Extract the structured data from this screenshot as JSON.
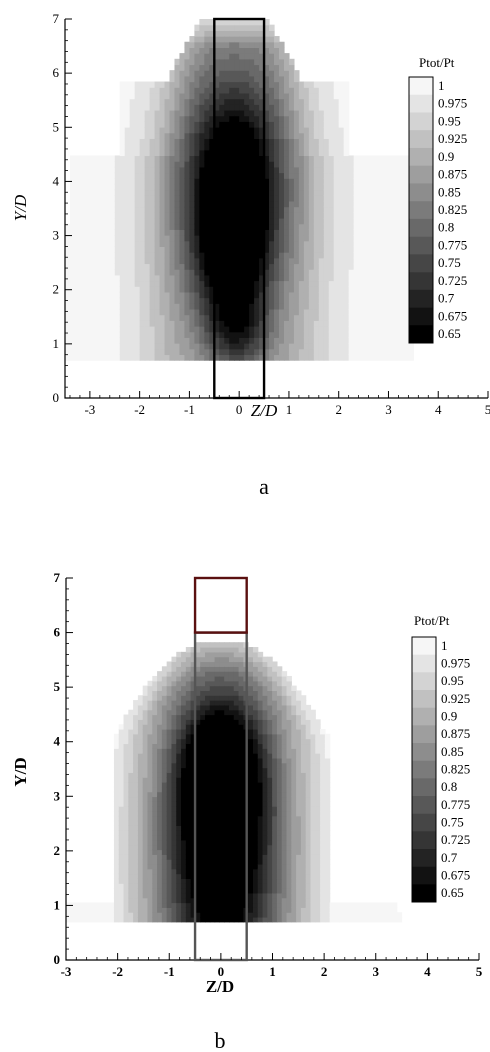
{
  "chart_data": [
    {
      "type": "heatmap",
      "panel_label": "a",
      "xlabel": "Z/D",
      "ylabel": "Y/D",
      "xlim": [
        -3.5,
        5
      ],
      "ylim": [
        0,
        7
      ],
      "x_ticks": [
        -3,
        -2,
        -1,
        0,
        1,
        2,
        3,
        4,
        5
      ],
      "y_ticks": [
        0,
        1,
        2,
        3,
        4,
        5,
        6,
        7
      ],
      "legend_title": "Ptot/Pt",
      "legend_position": "right",
      "legend_levels": [
        1,
        0.975,
        0.95,
        0.925,
        0.9,
        0.875,
        0.85,
        0.825,
        0.8,
        0.775,
        0.75,
        0.725,
        0.7,
        0.675,
        0.65
      ],
      "colormap": "grayscale (white = 1, black = 0.65)",
      "data_region": {
        "z": [
          -3.5,
          3.5
        ],
        "y": [
          0.7,
          7
        ]
      },
      "core_min": {
        "z": -0.1,
        "y": 4.0,
        "value": 0.675
      },
      "rectangles": [
        {
          "z": [
            -0.5,
            0.5
          ],
          "y": [
            0,
            7
          ],
          "color": "#000000"
        }
      ]
    },
    {
      "type": "heatmap",
      "panel_label": "b",
      "xlabel": "Z/D",
      "ylabel": "Y/D",
      "xlim": [
        -3,
        5
      ],
      "ylim": [
        0,
        7
      ],
      "x_ticks": [
        -3,
        -2,
        -1,
        0,
        1,
        2,
        3,
        4,
        5
      ],
      "y_ticks": [
        0,
        1,
        2,
        3,
        4,
        5,
        6,
        7
      ],
      "legend_title": "Ptot/Pt",
      "legend_position": "right",
      "legend_levels": [
        1,
        0.975,
        0.95,
        0.925,
        0.9,
        0.875,
        0.85,
        0.825,
        0.8,
        0.775,
        0.75,
        0.725,
        0.7,
        0.675,
        0.65
      ],
      "colormap": "grayscale (white = 1, black = 0.65)",
      "data_region": {
        "z": [
          -3,
          3.5
        ],
        "y": [
          0.7,
          6
        ]
      },
      "core_min": {
        "z": 0,
        "y": 2.0,
        "value": 0.65
      },
      "rectangles": [
        {
          "z": [
            -0.5,
            0.5
          ],
          "y": [
            0,
            6
          ],
          "color": "#555555"
        },
        {
          "z": [
            -0.5,
            0.5
          ],
          "y": [
            6,
            7
          ],
          "color": "#5a1010"
        }
      ]
    }
  ]
}
